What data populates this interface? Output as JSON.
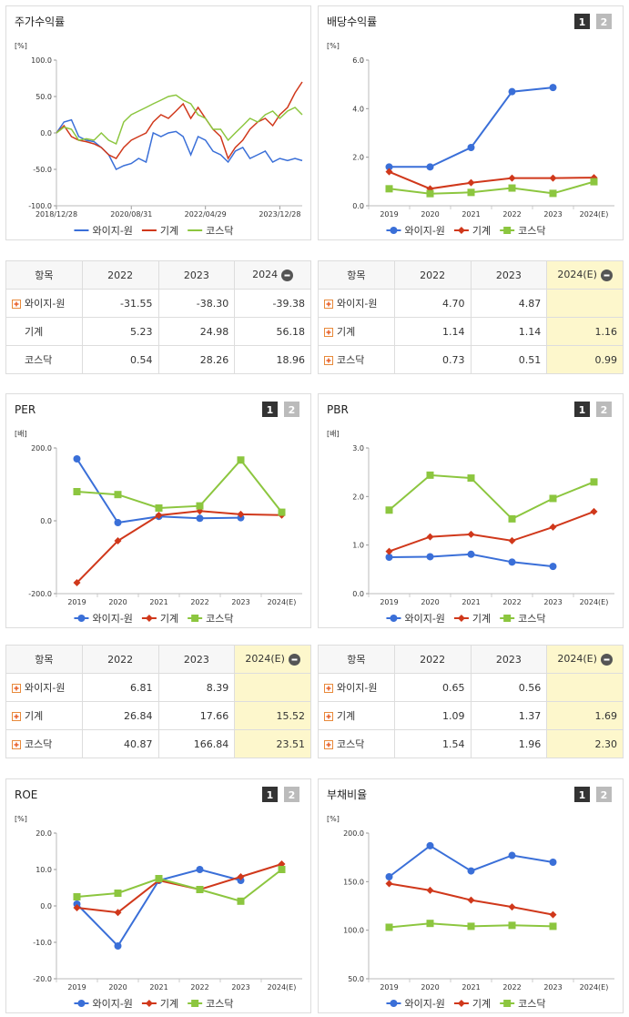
{
  "chart_data": [
    {
      "type": "line",
      "title": "주가수익률",
      "y_unit": "[%]",
      "x": [
        "2018/12/28",
        "2019/02/28",
        "2019/04/30",
        "2019/06/28",
        "2019/08/30",
        "2019/10/31",
        "2019/12/30",
        "2020/02/28",
        "2020/04/29",
        "2020/06/30",
        "2020/08/31",
        "2020/10/30",
        "2020/12/30",
        "2021/02/26",
        "2021/04/30",
        "2021/06/30",
        "2021/08/31",
        "2021/10/29",
        "2021/12/30",
        "2022/02/28",
        "2022/04/29",
        "2022/06/30",
        "2022/08/31",
        "2022/10/31",
        "2022/12/29",
        "2023/02/28",
        "2023/04/28",
        "2023/06/30",
        "2023/08/31",
        "2023/10/31",
        "2023/12/28",
        "2024/02/29",
        "2024/04/30",
        "2024/06/28"
      ],
      "xlim": [
        "2018/12/28",
        "2024/06/28"
      ],
      "xticks": [
        "2018/12/28",
        "2020/08/31",
        "2022/04/29",
        "2023/12/28"
      ],
      "ylim": [
        -100,
        100
      ],
      "yticks": [
        {
          "value": -100,
          "label": "-100.0"
        },
        {
          "value": -50,
          "label": "-50.0"
        },
        {
          "value": 0,
          "label": "0.0"
        },
        {
          "value": 50,
          "label": "50.0"
        },
        {
          "value": 100,
          "label": "100.0"
        }
      ],
      "series": [
        {
          "name": "와이지-원",
          "color": "#3a6fd8",
          "values": [
            0,
            15,
            18,
            -5,
            -10,
            -12,
            -20,
            -30,
            -50,
            -45,
            -42,
            -35,
            -40,
            0,
            -5,
            0,
            2,
            -5,
            -30,
            -5,
            -10,
            -25,
            -30,
            -40,
            -25,
            -20,
            -35,
            -30,
            -25,
            -40,
            -35,
            -38,
            -35,
            -38
          ]
        },
        {
          "name": "기계",
          "color": "#d0381b",
          "values": [
            0,
            10,
            -5,
            -10,
            -12,
            -15,
            -20,
            -30,
            -35,
            -20,
            -10,
            -5,
            0,
            15,
            25,
            20,
            30,
            40,
            20,
            35,
            20,
            5,
            -5,
            -35,
            -20,
            -10,
            5,
            15,
            20,
            10,
            25,
            35,
            55,
            70
          ]
        },
        {
          "name": "코스닥",
          "color": "#8cc63f",
          "values": [
            0,
            8,
            5,
            -10,
            -8,
            -10,
            0,
            -10,
            -15,
            15,
            25,
            30,
            35,
            40,
            45,
            50,
            52,
            45,
            40,
            25,
            20,
            5,
            5,
            -10,
            0,
            10,
            20,
            15,
            25,
            30,
            20,
            30,
            35,
            25
          ]
        }
      ]
    },
    {
      "type": "line",
      "title": "배당수익률",
      "buttons": [
        "1",
        "2"
      ],
      "y_unit": "[%]",
      "categories": [
        "2019",
        "2020",
        "2021",
        "2022",
        "2023",
        "2024(E)"
      ],
      "ylim": [
        0,
        6
      ],
      "yticks": [
        {
          "value": 0,
          "label": "0.0"
        },
        {
          "value": 2,
          "label": "2.0"
        },
        {
          "value": 4,
          "label": "4.0"
        },
        {
          "value": 6,
          "label": "6.0"
        }
      ],
      "series": [
        {
          "name": "와이지-원",
          "color": "#3a6fd8",
          "marker": "circle",
          "values": [
            1.6,
            1.6,
            2.4,
            4.7,
            4.87,
            null
          ]
        },
        {
          "name": "기계",
          "color": "#d0381b",
          "marker": "diamond",
          "values": [
            1.4,
            0.7,
            0.95,
            1.14,
            1.14,
            1.16
          ]
        },
        {
          "name": "코스닥",
          "color": "#8cc63f",
          "marker": "square",
          "values": [
            0.7,
            0.5,
            0.55,
            0.73,
            0.51,
            0.99
          ]
        }
      ]
    },
    {
      "type": "line",
      "title": "PER",
      "buttons": [
        "1",
        "2"
      ],
      "y_unit": "[배]",
      "categories": [
        "2019",
        "2020",
        "2021",
        "2022",
        "2023",
        "2024(E)"
      ],
      "ylim": [
        -200,
        200
      ],
      "yticks": [
        {
          "value": -200,
          "label": "-200.0"
        },
        {
          "value": 0,
          "label": "0.0"
        },
        {
          "value": 200,
          "label": "200.0"
        }
      ],
      "series": [
        {
          "name": "와이지-원",
          "color": "#3a6fd8",
          "marker": "circle",
          "values": [
            170,
            -5,
            12,
            6.81,
            8.39,
            null
          ]
        },
        {
          "name": "기계",
          "color": "#d0381b",
          "marker": "diamond",
          "values": [
            -170,
            -55,
            15,
            26.84,
            17.66,
            15.52
          ]
        },
        {
          "name": "코스닥",
          "color": "#8cc63f",
          "marker": "square",
          "values": [
            80,
            72,
            35,
            40.87,
            166.84,
            23.51
          ]
        }
      ]
    },
    {
      "type": "line",
      "title": "PBR",
      "buttons": [
        "1",
        "2"
      ],
      "y_unit": "[배]",
      "categories": [
        "2019",
        "2020",
        "2021",
        "2022",
        "2023",
        "2024(E)"
      ],
      "ylim": [
        0,
        3
      ],
      "yticks": [
        {
          "value": 0,
          "label": "0.0"
        },
        {
          "value": 1,
          "label": "1.0"
        },
        {
          "value": 2,
          "label": "2.0"
        },
        {
          "value": 3,
          "label": "3.0"
        }
      ],
      "series": [
        {
          "name": "와이지-원",
          "color": "#3a6fd8",
          "marker": "circle",
          "values": [
            0.75,
            0.76,
            0.81,
            0.65,
            0.56,
            null
          ]
        },
        {
          "name": "기계",
          "color": "#d0381b",
          "marker": "diamond",
          "values": [
            0.87,
            1.17,
            1.22,
            1.09,
            1.37,
            1.69
          ]
        },
        {
          "name": "코스닥",
          "color": "#8cc63f",
          "marker": "square",
          "values": [
            1.72,
            2.44,
            2.38,
            1.54,
            1.96,
            2.3
          ]
        }
      ]
    },
    {
      "type": "line",
      "title": "ROE",
      "buttons": [
        "1",
        "2"
      ],
      "y_unit": "[%]",
      "categories": [
        "2019",
        "2020",
        "2021",
        "2022",
        "2023",
        "2024(E)"
      ],
      "ylim": [
        -20,
        20
      ],
      "yticks": [
        {
          "value": -20,
          "label": "-20.0"
        },
        {
          "value": -10,
          "label": "-10.0"
        },
        {
          "value": 0,
          "label": "0.0"
        },
        {
          "value": 10,
          "label": "10.0"
        },
        {
          "value": 20,
          "label": "20.0"
        }
      ],
      "series": [
        {
          "name": "와이지-원",
          "color": "#3a6fd8",
          "marker": "circle",
          "values": [
            0.5,
            -11,
            7,
            10,
            7,
            null
          ]
        },
        {
          "name": "기계",
          "color": "#d0381b",
          "marker": "diamond",
          "values": [
            -0.5,
            -1.8,
            7,
            4.5,
            8,
            11.5
          ]
        },
        {
          "name": "코스닥",
          "color": "#8cc63f",
          "marker": "square",
          "values": [
            2.5,
            3.5,
            7.5,
            4.5,
            1.3,
            10
          ]
        }
      ]
    },
    {
      "type": "line",
      "title": "부채비율",
      "buttons": [
        "1",
        "2"
      ],
      "y_unit": "[%]",
      "categories": [
        "2019",
        "2020",
        "2021",
        "2022",
        "2023",
        "2024(E)"
      ],
      "ylim": [
        50,
        200
      ],
      "yticks": [
        {
          "value": 50,
          "label": "50.0"
        },
        {
          "value": 100,
          "label": "100.0"
        },
        {
          "value": 150,
          "label": "150.0"
        },
        {
          "value": 200,
          "label": "200.0"
        }
      ],
      "series": [
        {
          "name": "와이지-원",
          "color": "#3a6fd8",
          "marker": "circle",
          "values": [
            155,
            187,
            161,
            177,
            170,
            null
          ]
        },
        {
          "name": "기계",
          "color": "#d0381b",
          "marker": "diamond",
          "values": [
            148,
            141,
            131,
            124,
            116,
            null
          ]
        },
        {
          "name": "코스닥",
          "color": "#8cc63f",
          "marker": "square",
          "values": [
            103,
            107,
            104,
            105,
            104,
            null
          ]
        }
      ]
    }
  ],
  "tables": [
    {
      "columns": [
        "항목",
        "2022",
        "2023",
        "2024"
      ],
      "highlight_last_column": false,
      "rows": [
        {
          "label": "와이지-원",
          "expandable": true,
          "values": [
            "-31.55",
            "-38.30",
            "-39.38"
          ]
        },
        {
          "label": "기계",
          "expandable": false,
          "values": [
            "5.23",
            "24.98",
            "56.18"
          ]
        },
        {
          "label": "코스닥",
          "expandable": false,
          "values": [
            "0.54",
            "28.26",
            "18.96"
          ]
        }
      ]
    },
    {
      "columns": [
        "항목",
        "2022",
        "2023",
        "2024(E)"
      ],
      "highlight_last_column": true,
      "rows": [
        {
          "label": "와이지-원",
          "expandable": true,
          "values": [
            "4.70",
            "4.87",
            null
          ]
        },
        {
          "label": "기계",
          "expandable": true,
          "values": [
            "1.14",
            "1.14",
            "1.16"
          ]
        },
        {
          "label": "코스닥",
          "expandable": true,
          "values": [
            "0.73",
            "0.51",
            "0.99"
          ]
        }
      ]
    },
    {
      "columns": [
        "항목",
        "2022",
        "2023",
        "2024(E)"
      ],
      "highlight_last_column": true,
      "rows": [
        {
          "label": "와이지-원",
          "expandable": true,
          "values": [
            "6.81",
            "8.39",
            null
          ]
        },
        {
          "label": "기계",
          "expandable": true,
          "values": [
            "26.84",
            "17.66",
            "15.52"
          ]
        },
        {
          "label": "코스닥",
          "expandable": true,
          "values": [
            "40.87",
            "166.84",
            "23.51"
          ]
        }
      ]
    },
    {
      "columns": [
        "항목",
        "2022",
        "2023",
        "2024(E)"
      ],
      "highlight_last_column": true,
      "rows": [
        {
          "label": "와이지-원",
          "expandable": true,
          "values": [
            "0.65",
            "0.56",
            null
          ]
        },
        {
          "label": "기계",
          "expandable": true,
          "values": [
            "1.09",
            "1.37",
            "1.69"
          ]
        },
        {
          "label": "코스닥",
          "expandable": true,
          "values": [
            "1.54",
            "1.96",
            "2.30"
          ]
        }
      ]
    }
  ]
}
